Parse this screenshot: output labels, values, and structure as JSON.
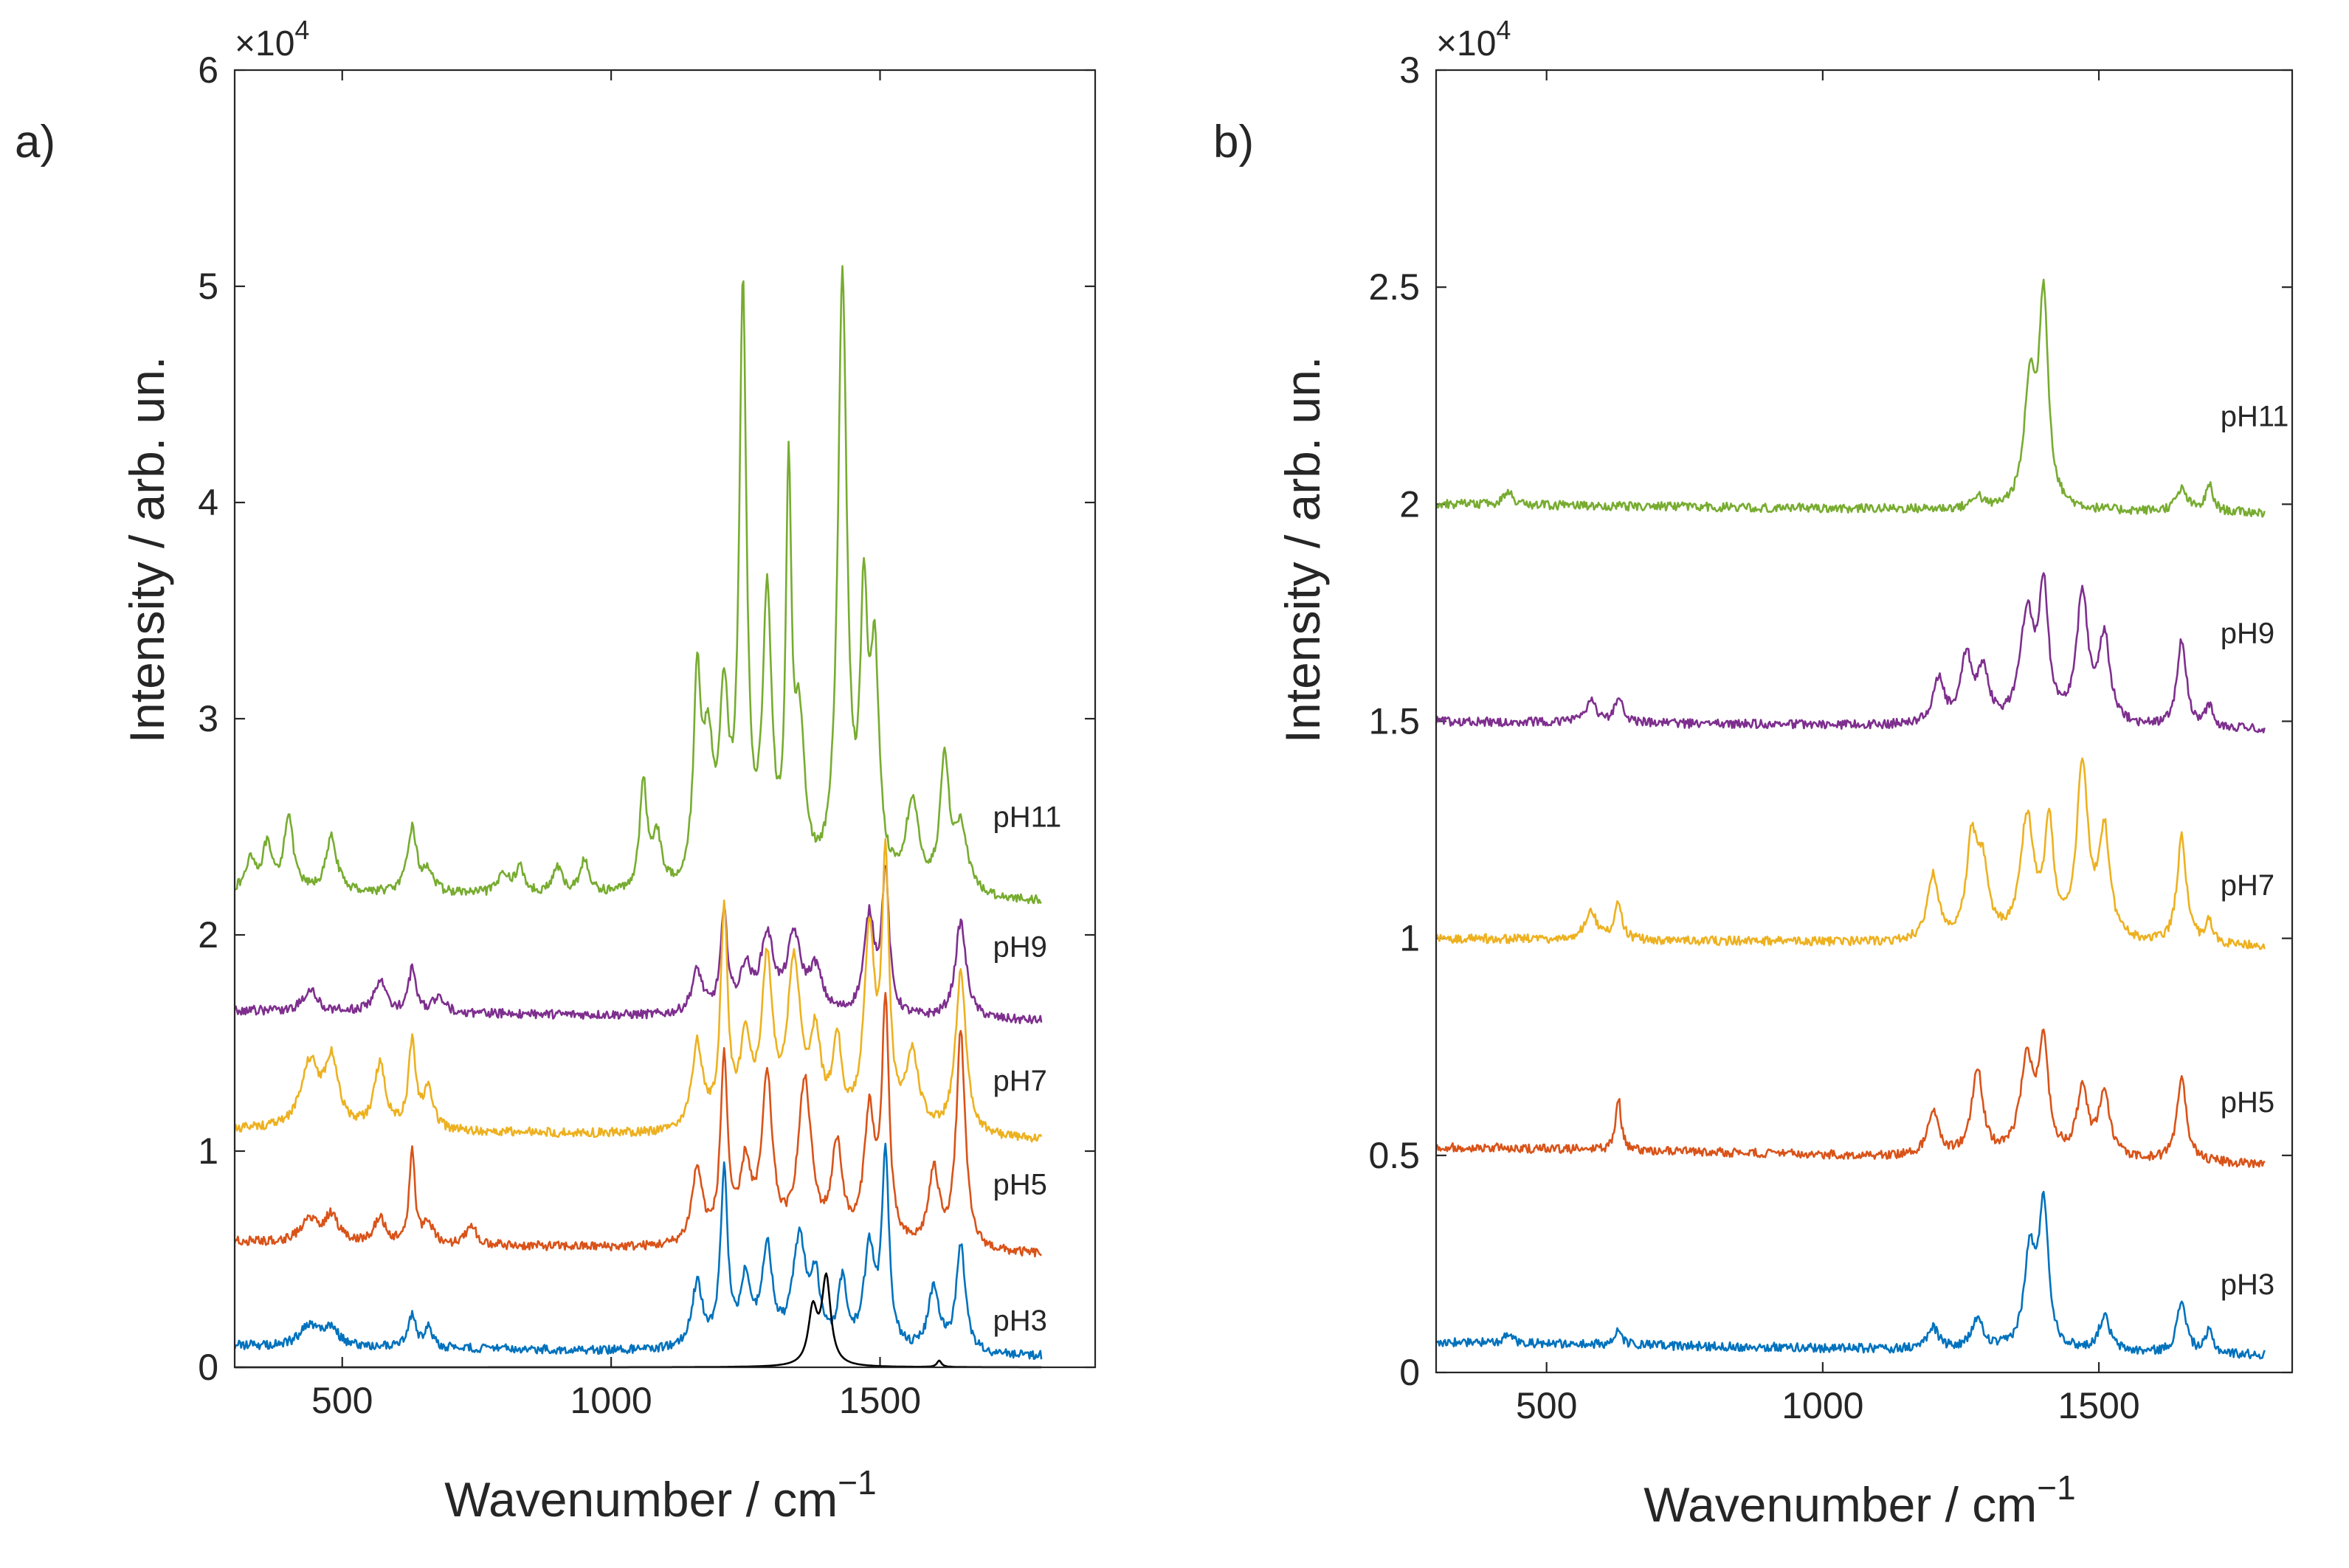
{
  "chart_data": [
    {
      "type": "line",
      "panel_label": "a)",
      "xlabel": "Wavenumber / cm",
      "xlabel_superscript": "−1",
      "ylabel": "Intensity  / arb. un.",
      "y_multiplier": "×10",
      "y_multiplier_exp": "4",
      "xlim": [
        300,
        1900
      ],
      "ylim": [
        0,
        6
      ],
      "xticks": [
        500,
        1000,
        1500
      ],
      "xtick_labels": [
        "500",
        "1000",
        "1500"
      ],
      "yticks": [
        0,
        1,
        2,
        3,
        4,
        5,
        6
      ],
      "ytick_labels": [
        "0",
        "1",
        "2",
        "3",
        "4",
        "5",
        "6"
      ],
      "grid": false,
      "series": [
        {
          "name": "pH11",
          "color": "#77AC30",
          "baseline": 2.2,
          "end_value": 2.15,
          "label_at": [
            1710,
            2.5
          ],
          "peaks": [
            [
              330,
              0.15,
              10
            ],
            [
              360,
              0.2,
              10
            ],
            [
              400,
              0.35,
              10
            ],
            [
              480,
              0.25,
              12
            ],
            [
              630,
              0.3,
              10
            ],
            [
              660,
              0.1,
              10
            ],
            [
              800,
              0.1,
              10
            ],
            [
              830,
              0.12,
              10
            ],
            [
              900,
              0.12,
              10
            ],
            [
              950,
              0.15,
              10
            ],
            [
              1060,
              0.5,
              8
            ],
            [
              1085,
              0.25,
              10
            ],
            [
              1160,
              0.9,
              8
            ],
            [
              1180,
              0.6,
              12
            ],
            [
              1210,
              0.8,
              10
            ],
            [
              1245,
              2.7,
              8
            ],
            [
              1290,
              1.3,
              10
            ],
            [
              1330,
              1.8,
              6
            ],
            [
              1350,
              0.7,
              12
            ],
            [
              1430,
              2.8,
              10
            ],
            [
              1470,
              1.2,
              8
            ],
            [
              1490,
              1.0,
              10
            ],
            [
              1560,
              0.4,
              15
            ],
            [
              1620,
              0.6,
              10
            ],
            [
              1650,
              0.3,
              15
            ]
          ]
        },
        {
          "name": "pH9",
          "color": "#7E2F8E",
          "baseline": 1.65,
          "end_value": 1.6,
          "label_at": [
            1710,
            1.9
          ],
          "peaks": [
            [
              440,
              0.1,
              15
            ],
            [
              570,
              0.15,
              12
            ],
            [
              630,
              0.2,
              8
            ],
            [
              680,
              0.08,
              12
            ],
            [
              1160,
              0.2,
              12
            ],
            [
              1210,
              0.45,
              8
            ],
            [
              1250,
              0.2,
              12
            ],
            [
              1290,
              0.35,
              15
            ],
            [
              1340,
              0.35,
              15
            ],
            [
              1380,
              0.2,
              15
            ],
            [
              1480,
              0.45,
              12
            ],
            [
              1510,
              0.65,
              8
            ],
            [
              1650,
              0.45,
              12
            ]
          ]
        },
        {
          "name": "pH7",
          "color": "#EDB120",
          "baseline": 1.1,
          "end_value": 1.05,
          "label_at": [
            1710,
            1.28
          ],
          "peaks": [
            [
              440,
              0.3,
              20
            ],
            [
              480,
              0.3,
              15
            ],
            [
              570,
              0.3,
              12
            ],
            [
              630,
              0.4,
              8
            ],
            [
              660,
              0.2,
              10
            ],
            [
              1160,
              0.4,
              12
            ],
            [
              1210,
              1.0,
              8
            ],
            [
              1250,
              0.4,
              12
            ],
            [
              1290,
              0.75,
              12
            ],
            [
              1340,
              0.75,
              15
            ],
            [
              1380,
              0.4,
              12
            ],
            [
              1420,
              0.4,
              10
            ],
            [
              1480,
              0.9,
              12
            ],
            [
              1510,
              1.2,
              8
            ],
            [
              1560,
              0.35,
              15
            ],
            [
              1650,
              0.75,
              12
            ]
          ]
        },
        {
          "name": "pH5",
          "color": "#D95319",
          "baseline": 0.58,
          "end_value": 0.52,
          "label_at": [
            1710,
            0.8
          ],
          "peaks": [
            [
              440,
              0.1,
              20
            ],
            [
              480,
              0.12,
              15
            ],
            [
              570,
              0.12,
              12
            ],
            [
              630,
              0.45,
              6
            ],
            [
              660,
              0.1,
              10
            ],
            [
              740,
              0.1,
              10
            ],
            [
              1160,
              0.35,
              12
            ],
            [
              1210,
              0.85,
              8
            ],
            [
              1250,
              0.35,
              12
            ],
            [
              1290,
              0.75,
              12
            ],
            [
              1360,
              0.75,
              15
            ],
            [
              1420,
              0.45,
              12
            ],
            [
              1480,
              0.6,
              12
            ],
            [
              1510,
              1.1,
              8
            ],
            [
              1600,
              0.35,
              12
            ],
            [
              1650,
              1.0,
              10
            ]
          ]
        },
        {
          "name": "pH3",
          "color": "#0072BD",
          "baseline": 0.1,
          "end_value": 0.05,
          "label_at": [
            1710,
            0.17
          ],
          "peaks": [
            [
              440,
              0.1,
              20
            ],
            [
              480,
              0.08,
              15
            ],
            [
              630,
              0.15,
              8
            ],
            [
              660,
              0.1,
              8
            ],
            [
              1160,
              0.3,
              12
            ],
            [
              1210,
              0.8,
              8
            ],
            [
              1250,
              0.3,
              12
            ],
            [
              1290,
              0.45,
              12
            ],
            [
              1350,
              0.5,
              15
            ],
            [
              1380,
              0.3,
              10
            ],
            [
              1430,
              0.3,
              10
            ],
            [
              1480,
              0.45,
              12
            ],
            [
              1510,
              0.9,
              8
            ],
            [
              1600,
              0.3,
              12
            ],
            [
              1650,
              0.5,
              10
            ]
          ]
        },
        {
          "name": "",
          "color": "#000000",
          "baseline": 0.0,
          "end_value": 0.0,
          "label_at": null,
          "peaks": [
            [
              1375,
              0.25,
              10
            ],
            [
              1400,
              0.4,
              10
            ],
            [
              1610,
              0.03,
              5
            ]
          ]
        }
      ]
    },
    {
      "type": "line",
      "panel_label": "b)",
      "xlabel": "Wavenumber / cm",
      "xlabel_superscript": "−1",
      "ylabel": "Intensity  / arb. un.",
      "y_multiplier": "×10",
      "y_multiplier_exp": "4",
      "xlim": [
        300,
        1850
      ],
      "ylim": [
        0,
        3
      ],
      "xticks": [
        500,
        1000,
        1500
      ],
      "xtick_labels": [
        "500",
        "1000",
        "1500"
      ],
      "yticks": [
        0,
        0.5,
        1,
        1.5,
        2,
        2.5,
        3
      ],
      "ytick_labels": [
        "0",
        "0.5",
        "1",
        "1.5",
        "2",
        "2.5",
        "3"
      ],
      "grid": false,
      "series": [
        {
          "name": "pH11",
          "color": "#77AC30",
          "baseline": 2.0,
          "end_value": 1.98,
          "label_at": [
            1720,
            2.18
          ],
          "peaks": [
            [
              430,
              0.03,
              10
            ],
            [
              1280,
              0.03,
              10
            ],
            [
              1375,
              0.28,
              12
            ],
            [
              1400,
              0.48,
              10
            ],
            [
              1650,
              0.05,
              12
            ],
            [
              1700,
              0.06,
              8
            ]
          ]
        },
        {
          "name": "pH9",
          "color": "#7E2F8E",
          "baseline": 1.5,
          "end_value": 1.48,
          "label_at": [
            1720,
            1.68
          ],
          "peaks": [
            [
              580,
              0.05,
              12
            ],
            [
              630,
              0.06,
              8
            ],
            [
              1210,
              0.1,
              12
            ],
            [
              1260,
              0.15,
              12
            ],
            [
              1290,
              0.12,
              12
            ],
            [
              1370,
              0.25,
              15
            ],
            [
              1400,
              0.3,
              10
            ],
            [
              1470,
              0.3,
              12
            ],
            [
              1510,
              0.2,
              12
            ],
            [
              1650,
              0.2,
              10
            ],
            [
              1700,
              0.05,
              8
            ]
          ]
        },
        {
          "name": "pH7",
          "color": "#EDB120",
          "baseline": 1.0,
          "end_value": 0.98,
          "label_at": [
            1720,
            1.1
          ],
          "peaks": [
            [
              580,
              0.07,
              12
            ],
            [
              630,
              0.08,
              8
            ],
            [
              1200,
              0.15,
              12
            ],
            [
              1270,
              0.22,
              12
            ],
            [
              1290,
              0.15,
              12
            ],
            [
              1370,
              0.28,
              15
            ],
            [
              1410,
              0.25,
              10
            ],
            [
              1470,
              0.4,
              12
            ],
            [
              1510,
              0.25,
              12
            ],
            [
              1650,
              0.25,
              10
            ],
            [
              1700,
              0.05,
              8
            ]
          ]
        },
        {
          "name": "pH5",
          "color": "#D95319",
          "baseline": 0.52,
          "end_value": 0.48,
          "label_at": [
            1720,
            0.6
          ],
          "peaks": [
            [
              630,
              0.12,
              6
            ],
            [
              1200,
              0.1,
              12
            ],
            [
              1280,
              0.2,
              12
            ],
            [
              1370,
              0.22,
              15
            ],
            [
              1400,
              0.25,
              10
            ],
            [
              1470,
              0.15,
              12
            ],
            [
              1510,
              0.15,
              12
            ],
            [
              1650,
              0.2,
              10
            ]
          ]
        },
        {
          "name": "pH3",
          "color": "#0072BD",
          "baseline": 0.07,
          "end_value": 0.04,
          "label_at": [
            1720,
            0.18
          ],
          "peaks": [
            [
              430,
              0.02,
              10
            ],
            [
              630,
              0.03,
              8
            ],
            [
              1200,
              0.05,
              12
            ],
            [
              1280,
              0.07,
              12
            ],
            [
              1375,
              0.22,
              12
            ],
            [
              1400,
              0.33,
              10
            ],
            [
              1510,
              0.08,
              12
            ],
            [
              1650,
              0.12,
              10
            ],
            [
              1700,
              0.05,
              8
            ]
          ]
        }
      ]
    }
  ]
}
